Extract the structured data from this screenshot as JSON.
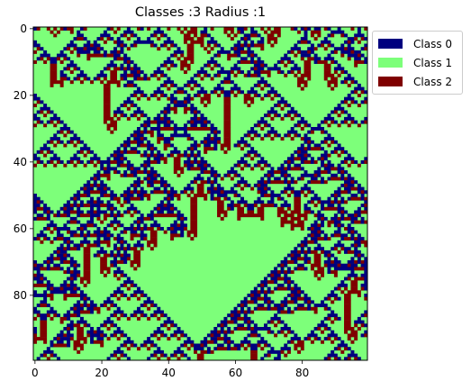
{
  "chart_data": {
    "type": "heatmap",
    "title": "Classes :3 Radius :1",
    "xlabel": "",
    "ylabel": "",
    "rows": 100,
    "cols": 100,
    "xlim": [
      -0.5,
      99.5
    ],
    "ylim": [
      99.5,
      -0.5
    ],
    "x_ticks": [
      "0",
      "20",
      "40",
      "60",
      "80"
    ],
    "x_tick_values": [
      0,
      20,
      40,
      60,
      80
    ],
    "y_ticks": [
      "0",
      "20",
      "40",
      "60",
      "80"
    ],
    "y_tick_values": [
      0,
      20,
      40,
      60,
      80
    ],
    "legend": {
      "placement": "outside-upper-right",
      "entries": [
        {
          "label": "Class 0",
          "color": "#00007f",
          "value": 0
        },
        {
          "label": "Class 1",
          "color": "#7dff7a",
          "value": 1
        },
        {
          "label": "Class 2",
          "color": "#7f0000",
          "value": 2
        }
      ]
    },
    "rule": {
      "description": "three-state cellular automaton with neighborhood radius 1, one row per time step",
      "classes": 3,
      "radius": 1
    }
  }
}
